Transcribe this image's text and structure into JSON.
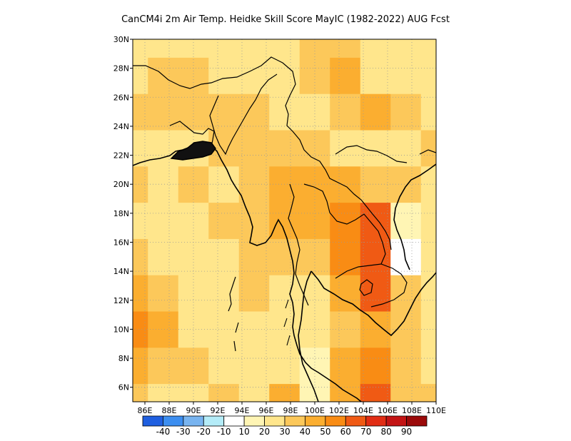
{
  "title": "CanCM4i 2m Air Temp. Heidke Skill Score MayIC (1982-2022) AUG Fcst",
  "chart_data": {
    "type": "heatmap",
    "title": "CanCM4i 2m Air Temp. Heidke Skill Score MayIC (1982-2022) AUG Fcst",
    "xlim": [
      85,
      110
    ],
    "ylim": [
      5,
      30
    ],
    "x_ticks": [
      86,
      88,
      90,
      92,
      94,
      96,
      98,
      100,
      102,
      104,
      106,
      108,
      110
    ],
    "x_tick_labels": [
      "86E",
      "88E",
      "90E",
      "92E",
      "94E",
      "96E",
      "98E",
      "100E",
      "102E",
      "104E",
      "106E",
      "108E",
      "110E"
    ],
    "y_ticks": [
      6,
      8,
      10,
      12,
      14,
      16,
      18,
      20,
      22,
      24,
      26,
      28,
      30
    ],
    "y_tick_labels": [
      "6N",
      "8N",
      "10N",
      "12N",
      "14N",
      "16N",
      "18N",
      "20N",
      "22N",
      "24N",
      "26N",
      "28N",
      "30N"
    ],
    "grid": true,
    "colorbar": {
      "colors": [
        "#1f5fe0",
        "#3c8ef0",
        "#78b4f0",
        "#b4ecf8",
        "#ffffff",
        "#fff5b4",
        "#ffe68c",
        "#fcc85a",
        "#fbae30",
        "#f98c14",
        "#f05a14",
        "#e12d14",
        "#c31414",
        "#9b0a0a"
      ],
      "labels": [
        "-40",
        "-30",
        "-20",
        "-10",
        "10",
        "20",
        "30",
        "40",
        "50",
        "60",
        "70",
        "80",
        "90"
      ]
    },
    "grid_lon": [
      85,
      87.5,
      90,
      92.5,
      95,
      97.5,
      100,
      102.5,
      105,
      107.5,
      110
    ],
    "grid_lat": [
      5,
      7.5,
      10,
      12.5,
      15,
      17.5,
      20,
      22.5,
      25,
      27.5,
      30
    ],
    "values": [
      [
        35,
        25,
        25,
        30,
        20,
        40,
        10,
        40,
        60,
        35,
        30
      ],
      [
        45,
        35,
        30,
        25,
        20,
        20,
        10,
        40,
        50,
        35,
        25
      ],
      [
        55,
        40,
        25,
        20,
        25,
        20,
        25,
        35,
        45,
        30,
        20
      ],
      [
        40,
        30,
        25,
        25,
        30,
        20,
        25,
        45,
        60,
        30,
        20
      ],
      [
        30,
        25,
        25,
        25,
        30,
        30,
        35,
        50,
        60,
        5,
        20
      ],
      [
        25,
        25,
        25,
        30,
        30,
        45,
        45,
        50,
        60,
        10,
        20
      ],
      [
        30,
        25,
        30,
        25,
        35,
        40,
        45,
        40,
        30,
        30,
        25
      ],
      [
        25,
        25,
        25,
        30,
        35,
        35,
        30,
        25,
        20,
        25,
        30
      ],
      [
        30,
        35,
        30,
        30,
        30,
        20,
        25,
        30,
        40,
        30,
        25
      ],
      [
        25,
        30,
        35,
        25,
        20,
        20,
        30,
        45,
        25,
        20,
        25
      ],
      [
        20,
        20,
        25,
        20,
        20,
        25,
        30,
        35,
        25,
        20,
        25
      ]
    ],
    "annotations": []
  }
}
